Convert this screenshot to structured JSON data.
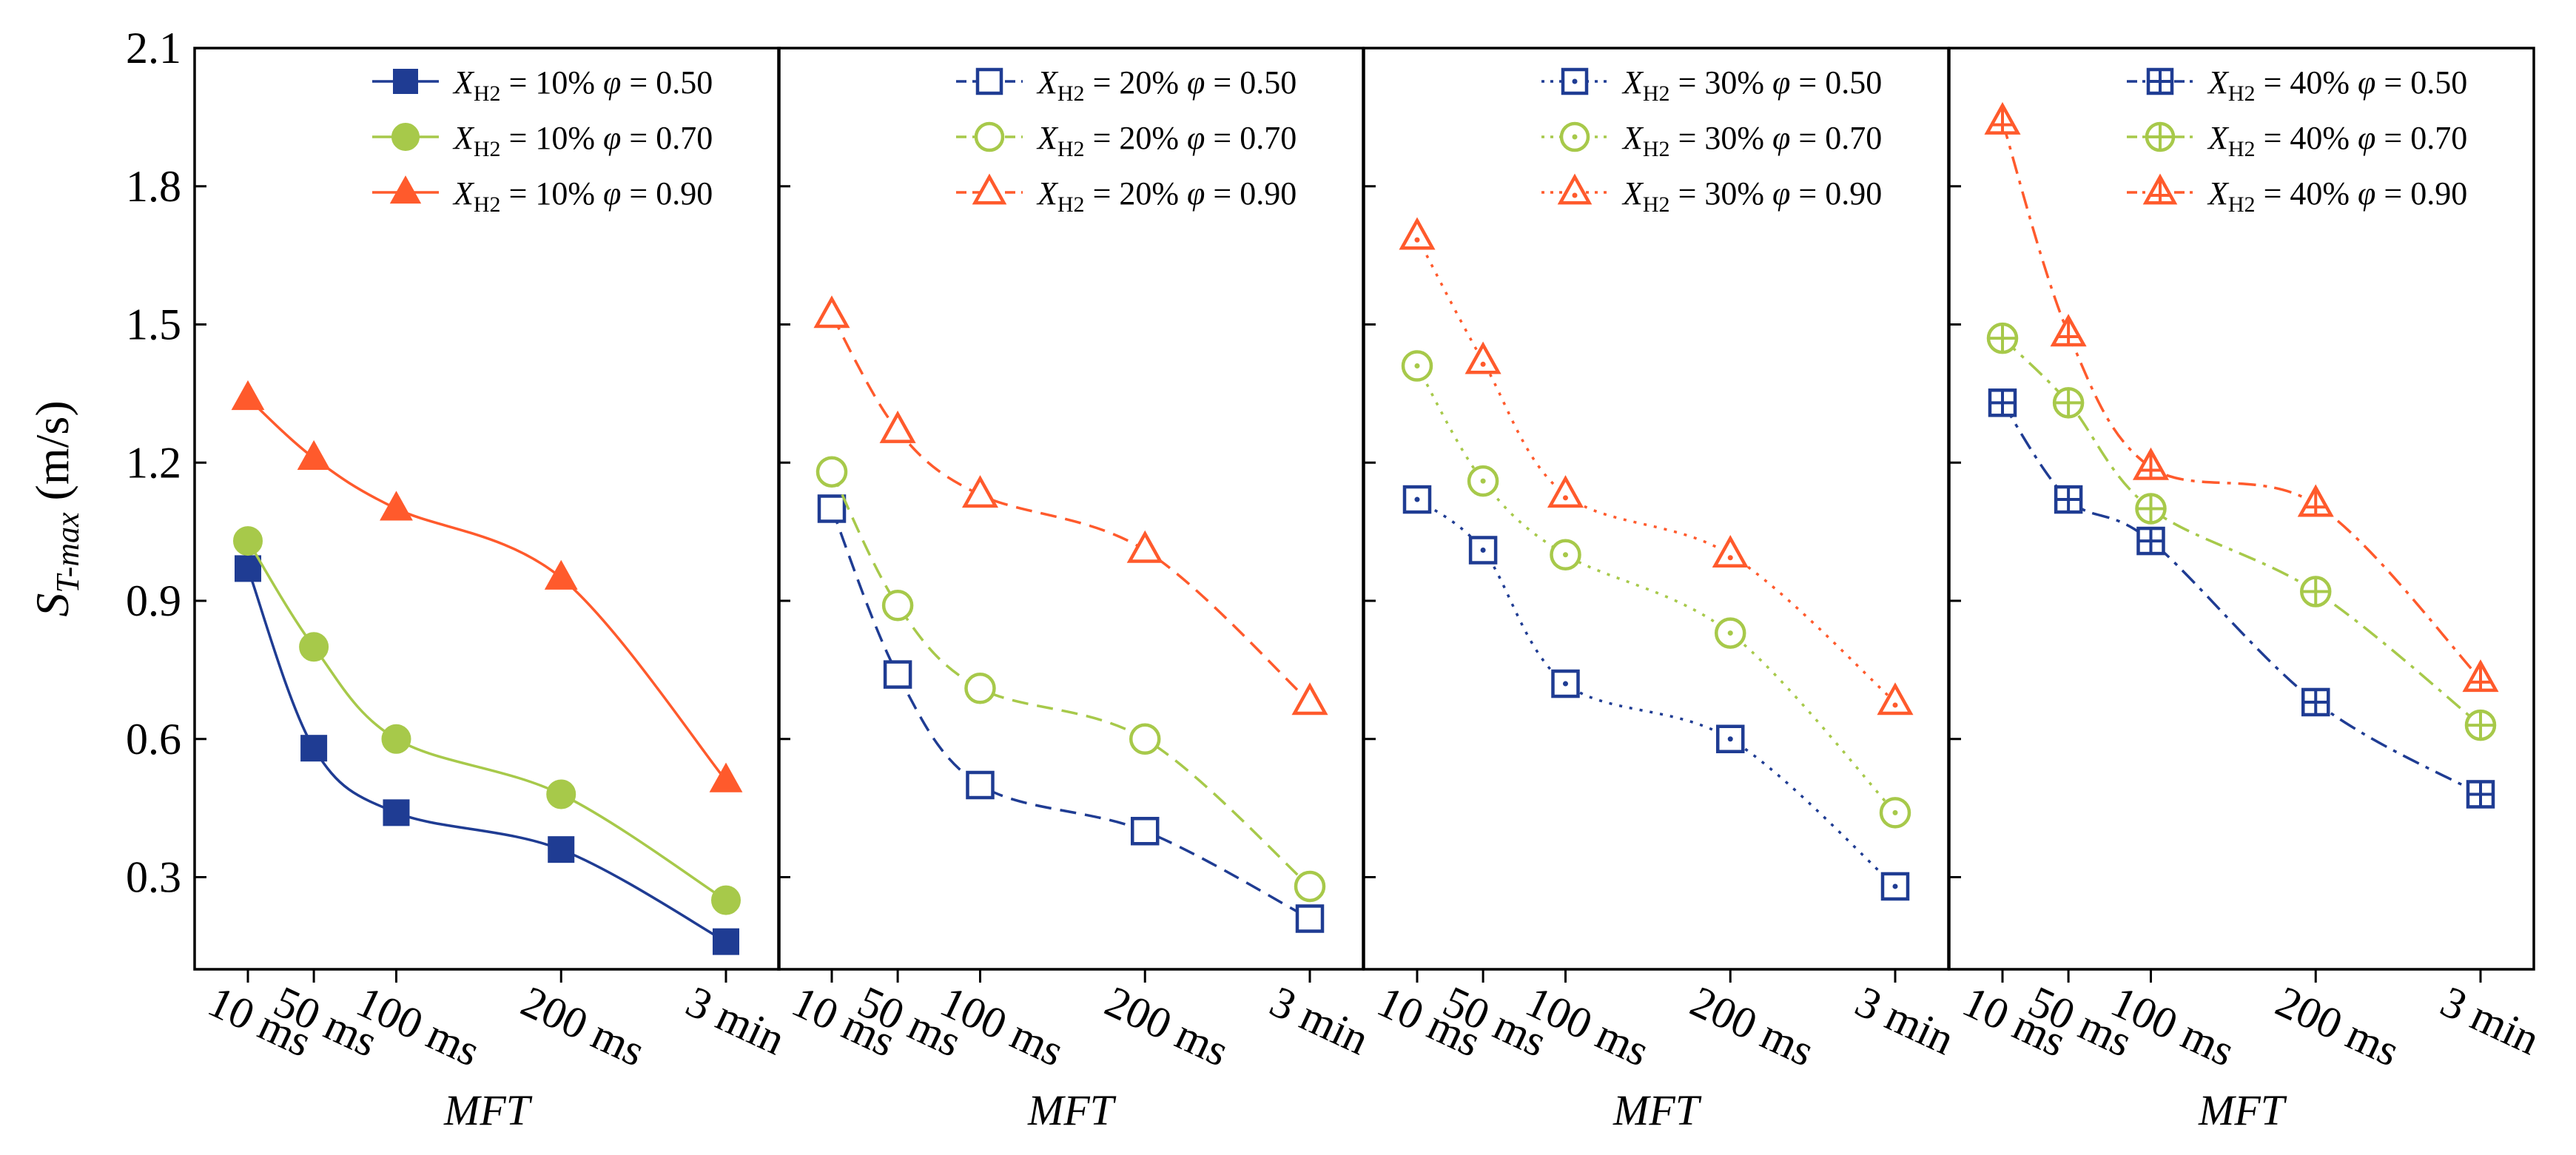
{
  "chart_data": [
    {
      "type": "line",
      "categories": [
        "10 ms",
        "50 ms",
        "100 ms",
        "200 ms",
        "3 min"
      ],
      "x": [
        10,
        50,
        100,
        200,
        300
      ],
      "xlabel": "MFT",
      "ylabel": "S",
      "ylabel_sub": "T-max",
      "ylabel_unit": "(m/s)",
      "ylim": [
        0.1,
        2.1
      ],
      "yticks": [
        "0.3",
        "0.6",
        "0.9",
        "1.2",
        "1.5",
        "1.8",
        "2.1"
      ],
      "line_style": "solid",
      "marker_style": "filled",
      "legend_position": "top-right",
      "series": [
        {
          "name_a": "X",
          "name_sub": "H2",
          "name_b": "= 10%",
          "name_c": "φ = 0.50",
          "color": "#1f3c93",
          "marker": "square",
          "values": [
            0.97,
            0.58,
            0.44,
            0.36,
            0.16
          ]
        },
        {
          "name_a": "X",
          "name_sub": "H2",
          "name_b": "= 10%",
          "name_c": "φ = 0.70",
          "color": "#a7c94a",
          "marker": "circle",
          "values": [
            1.03,
            0.8,
            0.6,
            0.48,
            0.25
          ]
        },
        {
          "name_a": "X",
          "name_sub": "H2",
          "name_b": "= 10%",
          "name_c": "φ = 0.90",
          "color": "#ff5a2c",
          "marker": "triangle",
          "values": [
            1.34,
            1.21,
            1.1,
            0.95,
            0.51
          ]
        }
      ]
    },
    {
      "type": "line",
      "categories": [
        "10 ms",
        "50 ms",
        "100 ms",
        "200 ms",
        "3 min"
      ],
      "x": [
        10,
        50,
        100,
        200,
        300
      ],
      "xlabel": "MFT",
      "ylim": [
        0.1,
        2.1
      ],
      "line_style": "dashed",
      "marker_style": "open",
      "legend_position": "top-right",
      "series": [
        {
          "name_a": "X",
          "name_sub": "H2",
          "name_b": "= 20%",
          "name_c": "φ = 0.50",
          "color": "#1f3c93",
          "marker": "square",
          "values": [
            1.1,
            0.74,
            0.5,
            0.4,
            0.21
          ]
        },
        {
          "name_a": "X",
          "name_sub": "H2",
          "name_b": "= 20%",
          "name_c": "φ = 0.70",
          "color": "#a7c94a",
          "marker": "circle",
          "values": [
            1.18,
            0.89,
            0.71,
            0.6,
            0.28
          ]
        },
        {
          "name_a": "X",
          "name_sub": "H2",
          "name_b": "= 20%",
          "name_c": "φ = 0.90",
          "color": "#ff5a2c",
          "marker": "triangle",
          "values": [
            1.52,
            1.27,
            1.13,
            1.01,
            0.68
          ]
        }
      ]
    },
    {
      "type": "line",
      "categories": [
        "10 ms",
        "50 ms",
        "100 ms",
        "200 ms",
        "3 min"
      ],
      "x": [
        10,
        50,
        100,
        200,
        300
      ],
      "xlabel": "MFT",
      "ylim": [
        0.1,
        2.1
      ],
      "line_style": "dotted",
      "marker_style": "open-dot",
      "legend_position": "top-right",
      "series": [
        {
          "name_a": "X",
          "name_sub": "H2",
          "name_b": "= 30%",
          "name_c": "φ = 0.50",
          "color": "#1f3c93",
          "marker": "square",
          "values": [
            1.12,
            1.01,
            0.72,
            0.6,
            0.28
          ]
        },
        {
          "name_a": "X",
          "name_sub": "H2",
          "name_b": "= 30%",
          "name_c": "φ = 0.70",
          "color": "#a7c94a",
          "marker": "circle",
          "values": [
            1.41,
            1.16,
            1.0,
            0.83,
            0.44
          ]
        },
        {
          "name_a": "X",
          "name_sub": "H2",
          "name_b": "= 30%",
          "name_c": "φ = 0.90",
          "color": "#ff5a2c",
          "marker": "triangle",
          "values": [
            1.69,
            1.42,
            1.13,
            1.0,
            0.68
          ]
        }
      ]
    },
    {
      "type": "line",
      "categories": [
        "10 ms",
        "50 ms",
        "100 ms",
        "200 ms",
        "3 min"
      ],
      "x": [
        10,
        50,
        100,
        200,
        300
      ],
      "xlabel": "MFT",
      "ylim": [
        0.1,
        2.1
      ],
      "line_style": "dash-dot",
      "marker_style": "open-cross",
      "legend_position": "top-right",
      "series": [
        {
          "name_a": "X",
          "name_sub": "H2",
          "name_b": "= 40%",
          "name_c": "φ = 0.50",
          "color": "#1f3c93",
          "marker": "square",
          "values": [
            1.33,
            1.12,
            1.03,
            0.68,
            0.48
          ]
        },
        {
          "name_a": "X",
          "name_sub": "H2",
          "name_b": "= 40%",
          "name_c": "φ = 0.70",
          "color": "#a7c94a",
          "marker": "circle",
          "values": [
            1.47,
            1.33,
            1.1,
            0.92,
            0.63
          ]
        },
        {
          "name_a": "X",
          "name_sub": "H2",
          "name_b": "= 40%",
          "name_c": "φ = 0.90",
          "color": "#ff5a2c",
          "marker": "triangle",
          "values": [
            1.94,
            1.48,
            1.19,
            1.11,
            0.73
          ]
        }
      ]
    }
  ]
}
